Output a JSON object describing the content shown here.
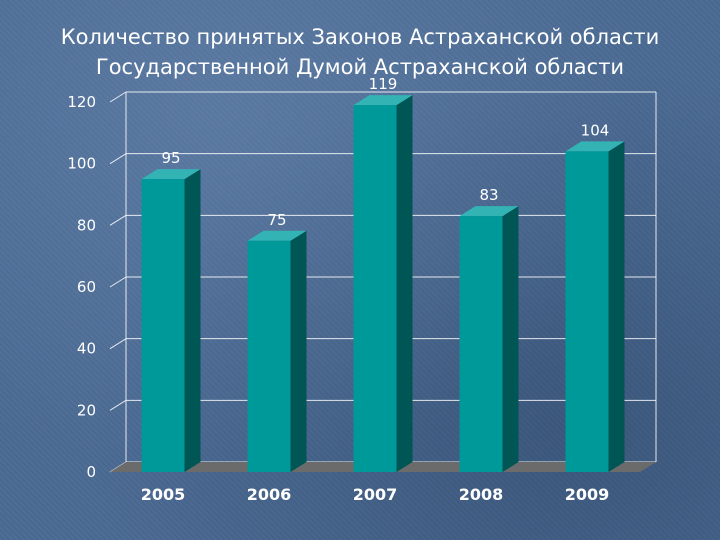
{
  "title": {
    "line1": "Количество принятых Законов Астраханской области",
    "line2": "Государственной Думой Астраханской области"
  },
  "colors": {
    "background": "#4b6a93",
    "bar_front": "#009999",
    "bar_side": "#005555",
    "bar_top": "#33b3b3",
    "floor": "#6b6b6b",
    "gridline": "#ffffff"
  },
  "chart_data": {
    "type": "bar",
    "title": "Количество принятых Законов Астраханской области Государственной Думой Астраханской области",
    "xlabel": "",
    "ylabel": "",
    "categories": [
      "2005",
      "2006",
      "2007",
      "2008",
      "2009"
    ],
    "values": [
      95,
      75,
      119,
      83,
      104
    ],
    "ylim": [
      0,
      120
    ],
    "yticks": [
      0,
      20,
      40,
      60,
      80,
      100,
      120
    ],
    "grid": true,
    "legend": "none",
    "style": "3d"
  }
}
